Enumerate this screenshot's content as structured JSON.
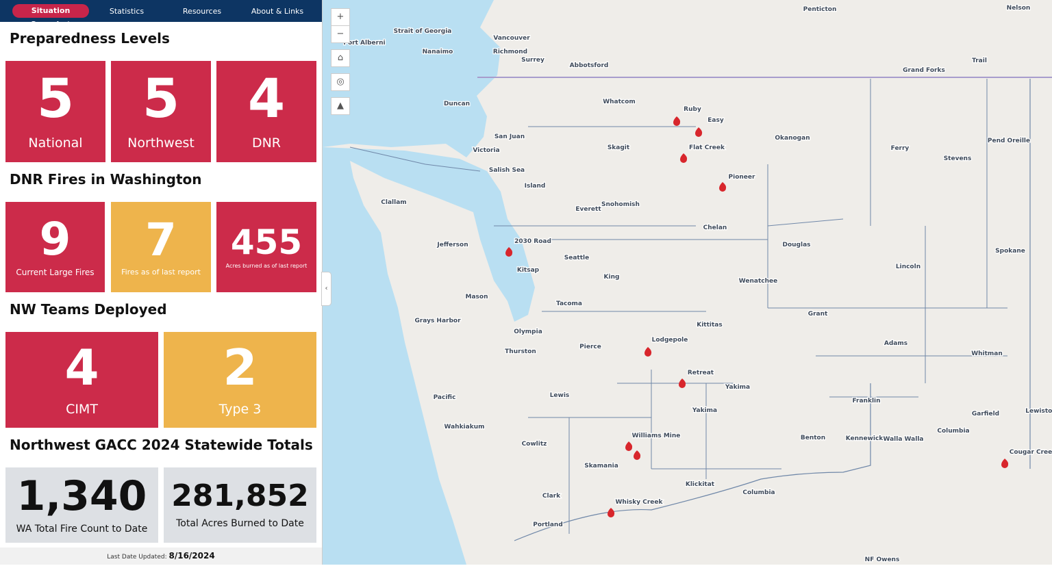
{
  "nav": {
    "items": [
      "Situation Snapshot",
      "Statistics",
      "Resources",
      "About & Links"
    ]
  },
  "preparedness": {
    "title": "Preparedness Levels",
    "tiles": [
      {
        "value": "5",
        "label": "National"
      },
      {
        "value": "5",
        "label": "Northwest"
      },
      {
        "value": "4",
        "label": "DNR"
      }
    ]
  },
  "dnr_fires": {
    "title": "DNR Fires in Washington",
    "tiles": [
      {
        "value": "9",
        "label": "Current Large Fires"
      },
      {
        "value": "7",
        "label": "Fires as of last report"
      },
      {
        "value": "455",
        "label": "Acres burned as of last report"
      }
    ]
  },
  "teams": {
    "title": "NW Teams Deployed",
    "tiles": [
      {
        "value": "4",
        "label": "CIMT"
      },
      {
        "value": "2",
        "label": "Type 3"
      }
    ]
  },
  "totals": {
    "title": "Northwest GACC 2024 Statewide Totals",
    "tiles": [
      {
        "value": "1,340",
        "label": "WA Total Fire Count to Date"
      },
      {
        "value": "281,852",
        "label": "Total Acres Burned to Date"
      }
    ]
  },
  "footer": {
    "label": "Last Date Updated:",
    "date": "8/16/2024"
  },
  "map": {
    "labels": [
      "Vancouver",
      "Richmond",
      "Surrey",
      "Abbotsford",
      "Nanaimo",
      "Port Alberni",
      "Duncan",
      "Victoria",
      "Penticton",
      "Nelson",
      "Grand Forks",
      "Trail",
      "Whatcom",
      "Skagit",
      "San Juan",
      "Island",
      "Snohomish",
      "Everett",
      "Clallam",
      "Jefferson",
      "Kitsap",
      "Seattle",
      "King",
      "Mason",
      "Tacoma",
      "Grays Harbor",
      "Olympia",
      "Thurston",
      "Pierce",
      "Pacific",
      "Lewis",
      "Wahkiakum",
      "Cowlitz",
      "Skamania",
      "Clark",
      "Portland",
      "Okanogan",
      "Ferry",
      "Stevens",
      "Pend Oreille",
      "Chelan",
      "Douglas",
      "Wenatchee",
      "Lincoln",
      "Spokane",
      "Kittitas",
      "Grant",
      "Adams",
      "Whitman",
      "Yakima",
      "Yakima",
      "Franklin",
      "Garfield",
      "Columbia",
      "Benton",
      "Kennewick",
      "Walla Walla",
      "Klickitat",
      "Lewiston",
      "Ruby",
      "Easy",
      "Pioneer",
      "Flat Creek",
      "2030 Road",
      "Lodgepole",
      "Retreat",
      "Williams Mine",
      "Whisky Creek",
      "Cougar Creek",
      "NF Owens",
      "Strait of Georgia",
      "Salish Sea",
      "Columbia"
    ]
  }
}
